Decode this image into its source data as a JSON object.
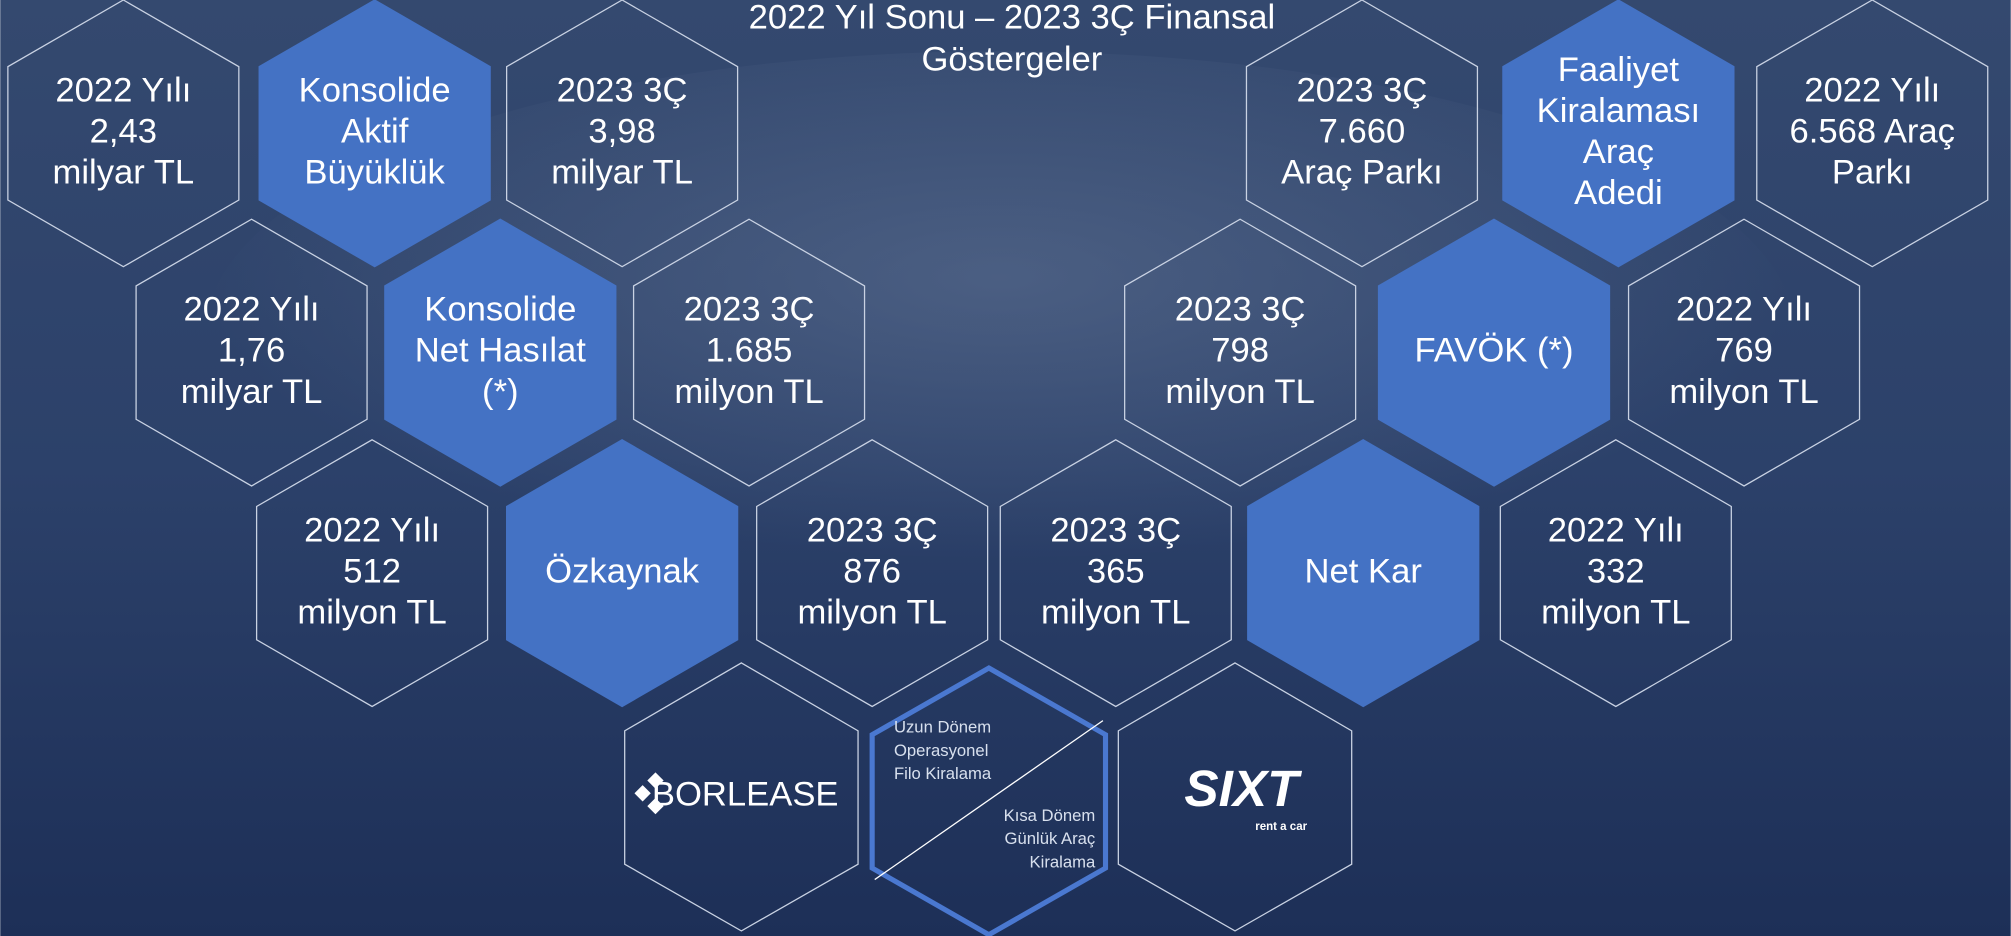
{
  "title": [
    "2022 Yıl Sonu – 2023 3Ç Finansal",
    "Göstergeler"
  ],
  "hexagons": [
    {
      "lines": [
        "2022 Yılı",
        "2,43",
        "milyar TL"
      ]
    },
    {
      "lines": [
        "Konsolide",
        "Aktif",
        "Büyüklük"
      ]
    },
    {
      "lines": [
        "2023 3Ç",
        "3,98",
        "milyar TL"
      ]
    },
    {
      "lines": [
        "2023 3Ç",
        "7.660",
        "Araç Parkı"
      ]
    },
    {
      "lines": [
        "Faaliyet",
        "Kiralaması",
        "Araç",
        "Adedi"
      ]
    },
    {
      "lines": [
        "2022 Yılı",
        "6.568 Araç",
        "Parkı"
      ]
    },
    {
      "lines": [
        "2022 Yılı",
        "1,76",
        "milyar TL"
      ]
    },
    {
      "lines": [
        "Konsolide",
        "Net Hasılat",
        "(*)"
      ]
    },
    {
      "lines": [
        "2023 3Ç",
        "1.685",
        "milyon TL"
      ]
    },
    {
      "lines": [
        "2023 3Ç",
        "798",
        "milyon TL"
      ]
    },
    {
      "lines": [
        "FAVÖK (*)"
      ]
    },
    {
      "lines": [
        "2022 Yılı",
        "769",
        "milyon TL"
      ]
    },
    {
      "lines": [
        "2022 Yılı",
        "512",
        "milyon TL"
      ]
    },
    {
      "lines": [
        "Özkaynak"
      ]
    },
    {
      "lines": [
        "2023 3Ç",
        "876",
        "milyon TL"
      ]
    },
    {
      "lines": [
        "2023 3Ç",
        "365",
        "milyon TL"
      ]
    },
    {
      "lines": [
        "Net Kar"
      ]
    },
    {
      "lines": [
        "2022 Yılı",
        "332",
        "milyon TL"
      ]
    }
  ],
  "logos": {
    "borlease": "BORLEASE",
    "sixt": "SIXT",
    "sixt_tagline": "rent a car"
  },
  "services": {
    "long_term": [
      "Uzun Dönem",
      "Operasyonel",
      "Filo Kiralama"
    ],
    "short_term": [
      "Kısa Dönem",
      "Günlük Araç",
      "Kiralama"
    ]
  }
}
